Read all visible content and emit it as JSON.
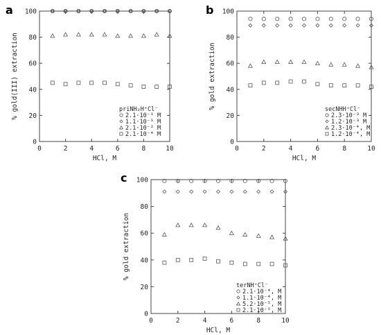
{
  "chart_data": [
    {
      "type": "scatter",
      "panel": "a",
      "xlabel": "HCl, M",
      "ylabel": "% gold(III) extraction",
      "xlim": [
        0,
        10
      ],
      "ylim": [
        0,
        100
      ],
      "xticks": [
        "0",
        "2",
        "4",
        "6",
        "8",
        "10"
      ],
      "yticks": [
        "0",
        "20",
        "40",
        "60",
        "80",
        "100"
      ],
      "grid": false,
      "legend_position": "bottom-right",
      "legend_title": "priNH₂H⁺Cl⁻",
      "x": [
        1,
        2,
        3,
        4,
        5,
        6,
        7,
        8,
        9,
        10
      ],
      "series": [
        {
          "name": "2.1·10⁻¹ M",
          "marker": "circle",
          "values": [
            100,
            100,
            100,
            100,
            100,
            100,
            100,
            100,
            100,
            100
          ]
        },
        {
          "name": "1.1·10⁻¹ M",
          "marker": "diamond",
          "values": [
            100,
            100,
            100,
            100,
            100,
            100,
            100,
            100,
            100,
            100
          ]
        },
        {
          "name": "2.1·10⁻² M",
          "marker": "triangle",
          "values": [
            81,
            82,
            82,
            82,
            82,
            81,
            81,
            81,
            82,
            81
          ]
        },
        {
          "name": "2.1·10⁻⁴ M",
          "marker": "square",
          "values": [
            45,
            44,
            45,
            45,
            45,
            44,
            43,
            42,
            42,
            42
          ]
        }
      ]
    },
    {
      "type": "scatter",
      "panel": "b",
      "xlabel": "HCl, M",
      "ylabel": "% gold extraction",
      "xlim": [
        0,
        10
      ],
      "ylim": [
        0,
        100
      ],
      "xticks": [
        "0",
        "2",
        "4",
        "6",
        "8",
        "10"
      ],
      "yticks": [
        "0",
        "20",
        "40",
        "60",
        "80",
        "100"
      ],
      "grid": false,
      "legend_position": "bottom-right",
      "legend_title": "secNHH⁺Cl⁻",
      "x": [
        1,
        2,
        3,
        4,
        5,
        6,
        7,
        8,
        9,
        10
      ],
      "series": [
        {
          "name": "2.3·10⁻³ M",
          "marker": "circle",
          "values": [
            94,
            94,
            94,
            94,
            94,
            94,
            94,
            94,
            94,
            94
          ]
        },
        {
          "name": "1.2·10⁻³ M",
          "marker": "diamond",
          "values": [
            89,
            89,
            89,
            89,
            89,
            89,
            89,
            89,
            89,
            89
          ]
        },
        {
          "name": "2.3·10⁻⁴, M",
          "marker": "triangle",
          "values": [
            58,
            61,
            61,
            61,
            61,
            60,
            59,
            59,
            58,
            57
          ]
        },
        {
          "name": "1.2·10⁻⁴, M",
          "marker": "square",
          "values": [
            43,
            45,
            45,
            46,
            46,
            44,
            43,
            43,
            43,
            42
          ]
        }
      ]
    },
    {
      "type": "scatter",
      "panel": "c",
      "xlabel": "HCl, M",
      "ylabel": "% gold extraction",
      "xlim": [
        0,
        10
      ],
      "ylim": [
        0,
        100
      ],
      "xticks": [
        "0",
        "2",
        "4",
        "6",
        "8",
        "10"
      ],
      "yticks": [
        "0",
        "20",
        "40",
        "60",
        "80",
        "100"
      ],
      "grid": false,
      "legend_position": "bottom-right",
      "legend_title": "terNH⁺Cl⁻",
      "x": [
        1,
        2,
        3,
        4,
        5,
        6,
        7,
        8,
        9,
        10
      ],
      "series": [
        {
          "name": "2.1·10⁻⁴, M",
          "marker": "circle",
          "values": [
            99,
            99,
            99,
            99,
            99,
            99,
            99,
            99,
            99,
            99
          ]
        },
        {
          "name": "1.1·10⁻⁴, M",
          "marker": "diamond",
          "values": [
            91,
            91,
            91,
            91,
            91,
            91,
            91,
            91,
            91,
            91
          ]
        },
        {
          "name": "5.2·10⁻⁵, M",
          "marker": "triangle",
          "values": [
            59,
            66,
            66,
            66,
            64,
            60,
            59,
            58,
            57,
            56
          ]
        },
        {
          "name": "2.1·10⁻⁵, M",
          "marker": "square",
          "values": [
            38,
            40,
            40,
            41,
            39,
            38,
            37,
            37,
            37,
            36
          ]
        }
      ]
    }
  ]
}
